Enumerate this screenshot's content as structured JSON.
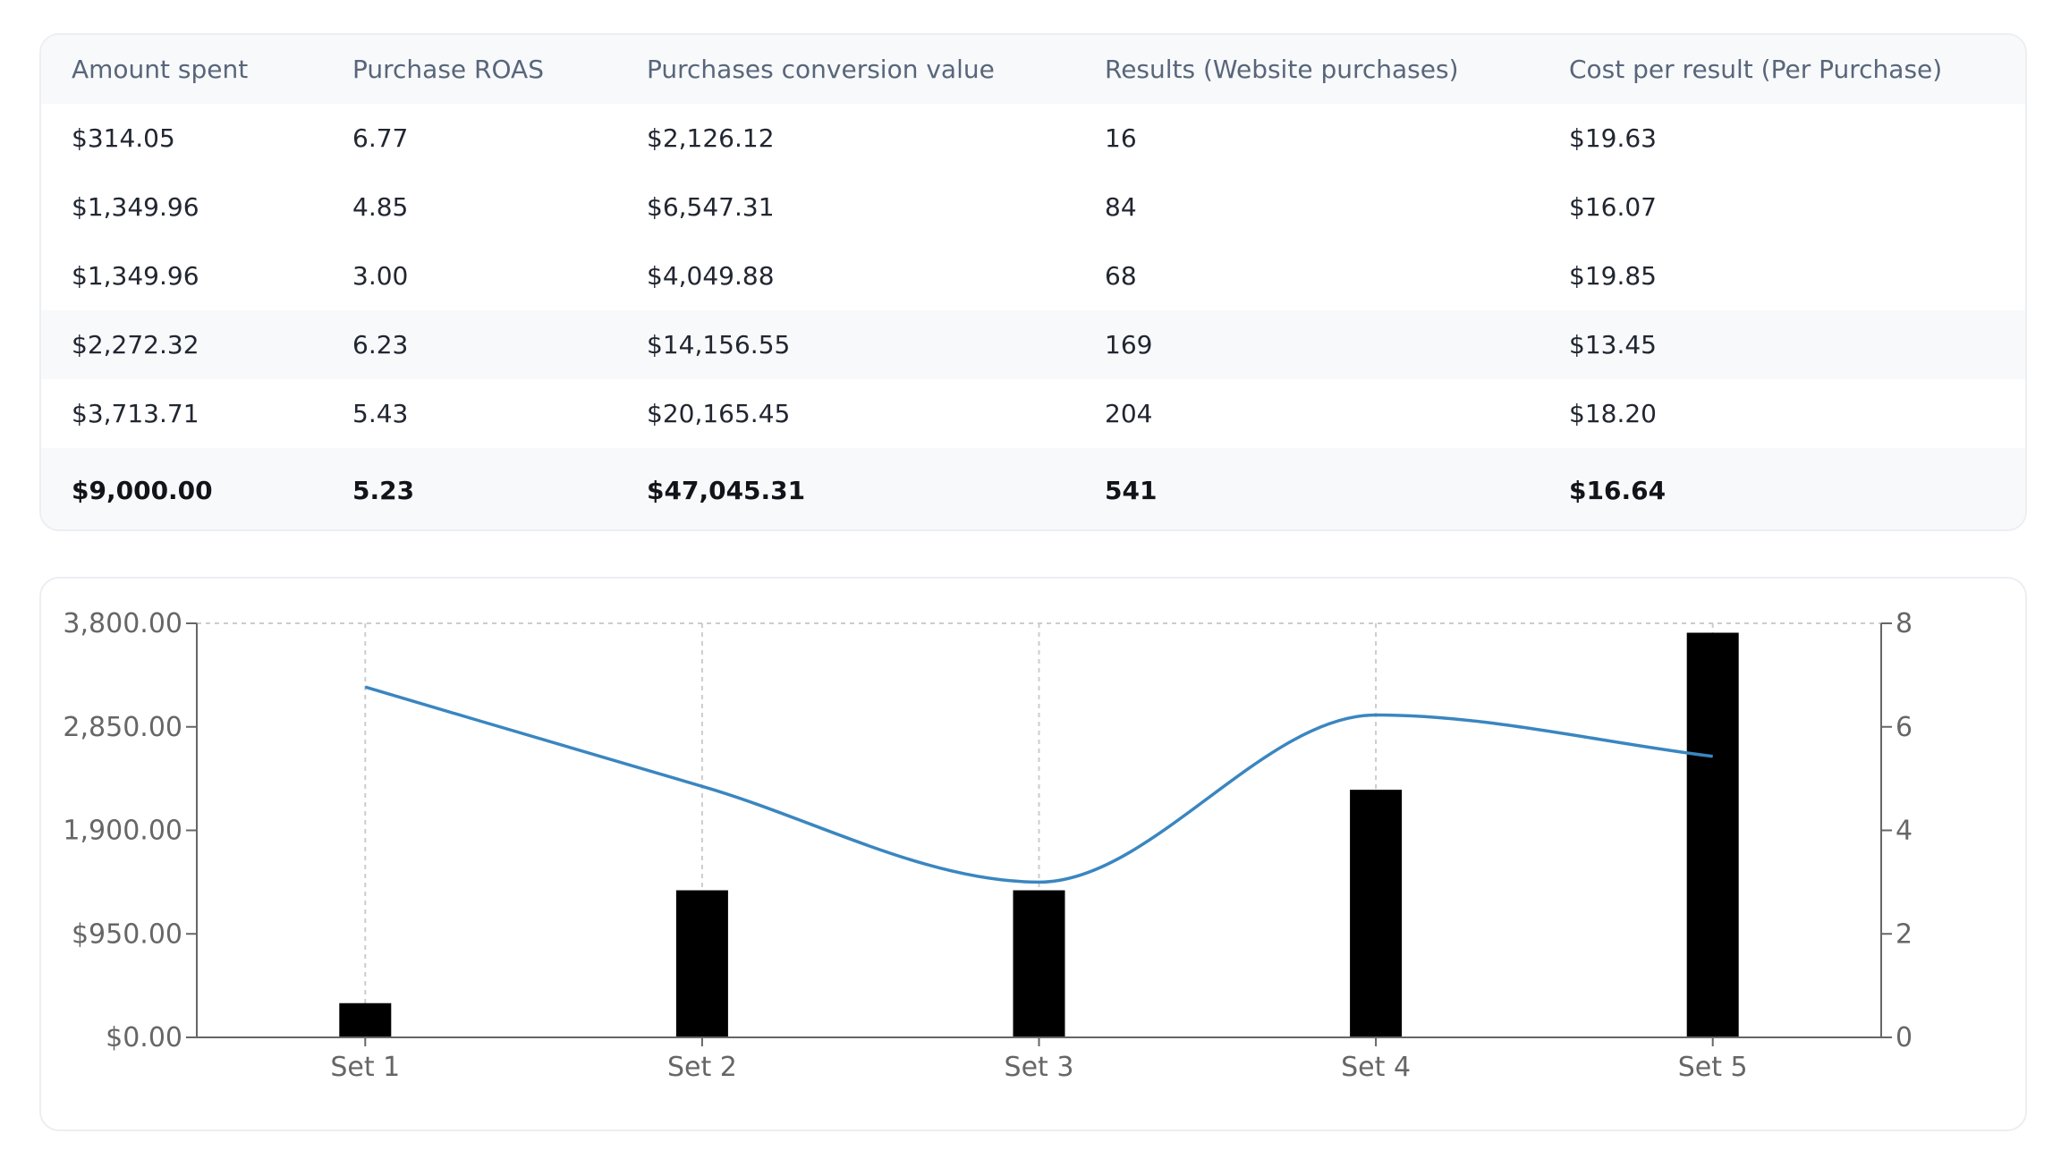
{
  "table": {
    "headers": [
      "Amount spent",
      "Purchase ROAS",
      "Purchases conversion value",
      "Results (Website purchases)",
      "Cost per result (Per Purchase)"
    ],
    "rows": [
      [
        "$314.05",
        "6.77",
        "$2,126.12",
        "16",
        "$19.63"
      ],
      [
        "$1,349.96",
        "4.85",
        "$6,547.31",
        "84",
        "$16.07"
      ],
      [
        "$1,349.96",
        "3.00",
        "$4,049.88",
        "68",
        "$19.85"
      ],
      [
        "$2,272.32",
        "6.23",
        "$14,156.55",
        "169",
        "$13.45"
      ],
      [
        "$3,713.71",
        "5.43",
        "$20,165.45",
        "204",
        "$18.20"
      ]
    ],
    "totals": [
      "$9,000.00",
      "5.23",
      "$47,045.31",
      "541",
      "$16.64"
    ]
  },
  "chart_data": {
    "type": "bar",
    "categories": [
      "Set 1",
      "Set 2",
      "Set 3",
      "Set 4",
      "Set 5"
    ],
    "series": [
      {
        "type": "bar",
        "axis": "left",
        "color": "#000000",
        "values": [
          314.05,
          1349.96,
          1349.96,
          2272.32,
          3713.71
        ]
      },
      {
        "type": "line",
        "axis": "right",
        "color": "#3a86c0",
        "values": [
          6.77,
          4.85,
          3.0,
          6.23,
          5.43
        ]
      }
    ],
    "y_left": {
      "range": [
        0,
        3800
      ],
      "ticks": [
        0,
        950,
        1900,
        2850,
        3800
      ],
      "tick_labels": [
        "$0.00",
        "$950.00",
        "1,900.00",
        "2,850.00",
        "3,800.00"
      ]
    },
    "y_right": {
      "range": [
        0,
        8
      ],
      "ticks": [
        0,
        2,
        4,
        6,
        8
      ],
      "tick_labels": [
        "0",
        "2",
        "4",
        "6",
        "8"
      ]
    },
    "xlabel": "",
    "ylabel": "",
    "grid": "vertical dashed",
    "legend": "none"
  }
}
